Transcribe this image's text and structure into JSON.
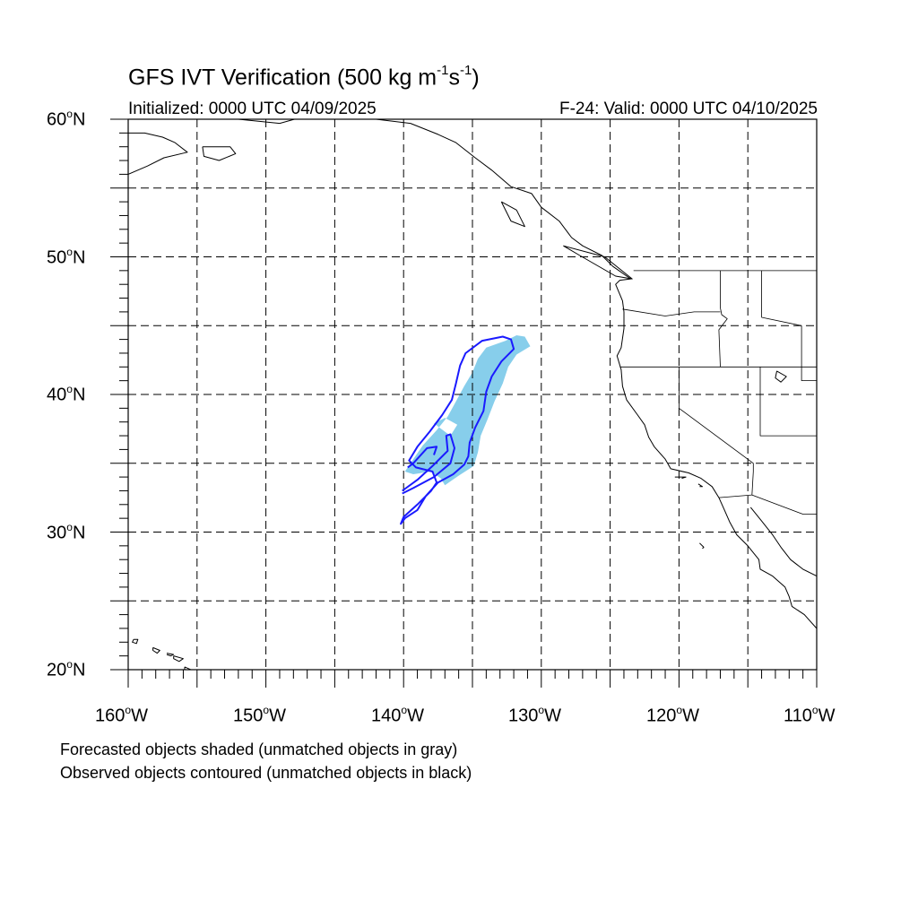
{
  "title": {
    "main": "GFS IVT Verification (500 kg m",
    "exp1": "-1",
    "mid": "s",
    "exp2": "-1",
    "end": ")"
  },
  "init_text": "Initialized: 0000 UTC 04/09/2025",
  "valid_text": "F-24: Valid: 0000 UTC 04/10/2025",
  "lat_labels": [
    {
      "num": "60",
      "deg": "o",
      "hem": "N"
    },
    {
      "num": "50",
      "deg": "o",
      "hem": "N"
    },
    {
      "num": "40",
      "deg": "o",
      "hem": "N"
    },
    {
      "num": "30",
      "deg": "o",
      "hem": "N"
    },
    {
      "num": "20",
      "deg": "o",
      "hem": "N"
    }
  ],
  "lon_labels": [
    {
      "num": "160",
      "deg": "o",
      "hem": "W"
    },
    {
      "num": "150",
      "deg": "o",
      "hem": "W"
    },
    {
      "num": "140",
      "deg": "o",
      "hem": "W"
    },
    {
      "num": "130",
      "deg": "o",
      "hem": "W"
    },
    {
      "num": "120",
      "deg": "o",
      "hem": "W"
    },
    {
      "num": "110",
      "deg": "o",
      "hem": "W"
    }
  ],
  "notes": [
    "Forecasted objects shaded (unmatched objects in gray)",
    "Observed objects contoured (unmatched objects in black)"
  ],
  "map": {
    "lon_range": [
      -160,
      -110
    ],
    "lat_range": [
      20,
      60
    ],
    "grid_lons": [
      -155,
      -150,
      -145,
      -140,
      -135,
      -130,
      -125,
      -120,
      -115
    ],
    "grid_lats": [
      25,
      30,
      35,
      40,
      45,
      50,
      55
    ],
    "colors": {
      "forecast_fill": "#87ceeb",
      "observed_contour": "#1a1aff",
      "coast": "#000000",
      "grid": "#000000"
    },
    "forecast_object": [
      [
        -131.2,
        44.2
      ],
      [
        -130.8,
        43.5
      ],
      [
        -131.8,
        42.9
      ],
      [
        -132.4,
        42.0
      ],
      [
        -132.8,
        40.8
      ],
      [
        -133.4,
        39.5
      ],
      [
        -133.9,
        38.2
      ],
      [
        -134.4,
        37.0
      ],
      [
        -134.6,
        35.8
      ],
      [
        -134.9,
        34.8
      ],
      [
        -136.0,
        34.1
      ],
      [
        -137.0,
        33.4
      ],
      [
        -137.3,
        33.9
      ],
      [
        -138.0,
        34.4
      ],
      [
        -139.3,
        34.2
      ],
      [
        -139.9,
        34.4
      ],
      [
        -139.3,
        35.3
      ],
      [
        -138.6,
        36.3
      ],
      [
        -137.6,
        37.4
      ],
      [
        -136.8,
        38.4
      ],
      [
        -136.2,
        39.5
      ],
      [
        -135.6,
        40.6
      ],
      [
        -135.0,
        41.6
      ],
      [
        -134.6,
        42.6
      ],
      [
        -134.0,
        43.4
      ],
      [
        -132.6,
        43.9
      ],
      [
        -131.8,
        44.3
      ]
    ],
    "forecast_hole": [
      [
        -136.6,
        37.0
      ],
      [
        -137.8,
        37.9
      ],
      [
        -137.0,
        38.3
      ],
      [
        -136.1,
        37.8
      ]
    ],
    "observed_outer": [
      [
        -132.2,
        44.0
      ],
      [
        -132.0,
        43.3
      ],
      [
        -132.9,
        42.4
      ],
      [
        -133.6,
        41.3
      ],
      [
        -134.0,
        40.2
      ],
      [
        -134.2,
        38.8
      ],
      [
        -134.8,
        37.6
      ],
      [
        -135.2,
        36.5
      ],
      [
        -135.3,
        35.5
      ],
      [
        -135.6,
        34.9
      ],
      [
        -136.4,
        34.2
      ],
      [
        -137.5,
        33.6
      ],
      [
        -138.4,
        32.6
      ],
      [
        -139.0,
        31.6
      ],
      [
        -139.9,
        31.0
      ],
      [
        -140.2,
        30.6
      ],
      [
        -140.0,
        31.1
      ],
      [
        -139.0,
        32.0
      ],
      [
        -138.0,
        33.0
      ],
      [
        -137.6,
        33.6
      ],
      [
        -137.9,
        34.4
      ],
      [
        -139.1,
        34.7
      ],
      [
        -139.6,
        35.2
      ],
      [
        -139.0,
        36.2
      ],
      [
        -138.1,
        37.3
      ],
      [
        -137.2,
        38.5
      ],
      [
        -136.5,
        39.6
      ],
      [
        -136.2,
        40.8
      ],
      [
        -135.9,
        42.1
      ],
      [
        -135.5,
        43.0
      ],
      [
        -134.3,
        43.9
      ],
      [
        -132.8,
        44.2
      ]
    ],
    "observed_inner": [
      [
        -137.8,
        35.6
      ],
      [
        -137.6,
        36.2
      ],
      [
        -138.3,
        36.1
      ],
      [
        -139.3,
        35.0
      ],
      [
        -139.7,
        34.7
      ]
    ],
    "observed_tail": [
      [
        -140.1,
        32.8
      ],
      [
        -139.3,
        33.2
      ],
      [
        -137.8,
        34.0
      ],
      [
        -136.6,
        35.0
      ],
      [
        -136.3,
        36.1
      ],
      [
        -136.6,
        37.1
      ],
      [
        -136.9,
        37.0
      ],
      [
        -136.8,
        35.9
      ],
      [
        -137.9,
        34.8
      ],
      [
        -139.0,
        33.8
      ],
      [
        -140.1,
        33.0
      ]
    ],
    "coastline": [
      [
        -152.0,
        60.0
      ],
      [
        -149.0,
        59.7
      ],
      [
        -146.5,
        60.4
      ],
      [
        -142.0,
        60.0
      ],
      [
        -139.5,
        59.7
      ],
      [
        -137.5,
        58.9
      ],
      [
        -136.2,
        58.3
      ],
      [
        -134.8,
        57.2
      ],
      [
        -133.6,
        56.3
      ],
      [
        -132.2,
        55.1
      ],
      [
        -130.7,
        54.6
      ],
      [
        -130.0,
        53.6
      ],
      [
        -128.7,
        52.6
      ],
      [
        -127.8,
        51.4
      ],
      [
        -127.0,
        50.8
      ],
      [
        -125.6,
        50.1
      ],
      [
        -124.8,
        49.3
      ],
      [
        -123.5,
        48.4
      ],
      [
        -124.3,
        48.3
      ],
      [
        -124.6,
        48.0
      ],
      [
        -124.1,
        46.8
      ],
      [
        -124.0,
        46.0
      ],
      [
        -124.0,
        44.8
      ],
      [
        -124.2,
        43.4
      ],
      [
        -124.5,
        42.8
      ],
      [
        -124.2,
        41.8
      ],
      [
        -124.1,
        40.6
      ],
      [
        -123.8,
        39.6
      ],
      [
        -123.0,
        38.5
      ],
      [
        -122.5,
        37.8
      ],
      [
        -122.2,
        36.9
      ],
      [
        -121.8,
        36.2
      ],
      [
        -121.0,
        35.3
      ],
      [
        -120.6,
        34.6
      ],
      [
        -119.3,
        34.3
      ],
      [
        -118.4,
        33.9
      ],
      [
        -117.6,
        33.3
      ],
      [
        -117.1,
        32.5
      ],
      [
        -116.7,
        31.6
      ],
      [
        -116.3,
        30.7
      ],
      [
        -115.8,
        29.8
      ],
      [
        -115.0,
        29.0
      ],
      [
        -114.2,
        28.0
      ],
      [
        -114.1,
        27.3
      ],
      [
        -113.2,
        26.8
      ],
      [
        -112.3,
        26.0
      ],
      [
        -112.0,
        25.3
      ],
      [
        -111.8,
        24.6
      ],
      [
        -110.9,
        24.0
      ],
      [
        -110.0,
        23.0
      ]
    ],
    "gulf_coast": [
      [
        -114.8,
        31.8
      ],
      [
        -114.0,
        30.8
      ],
      [
        -113.2,
        29.8
      ],
      [
        -112.6,
        28.9
      ],
      [
        -111.9,
        28.0
      ],
      [
        -111.0,
        27.3
      ],
      [
        -110.0,
        26.8
      ]
    ],
    "alaska_coast": [
      [
        -160.0,
        59.0
      ],
      [
        -158.8,
        59.0
      ],
      [
        -157.5,
        58.7
      ],
      [
        -156.6,
        58.3
      ],
      [
        -155.7,
        57.6
      ],
      [
        -157.4,
        57.2
      ],
      [
        -158.6,
        56.6
      ],
      [
        -160.0,
        56.0
      ]
    ],
    "kodiak": [
      [
        -154.6,
        58.0
      ],
      [
        -152.6,
        58.0
      ],
      [
        -152.2,
        57.5
      ],
      [
        -153.4,
        57.0
      ],
      [
        -154.5,
        57.3
      ],
      [
        -154.6,
        58.0
      ]
    ],
    "hawaii": [
      [
        [
          -159.6,
          22.2
        ],
        [
          -159.3,
          22.2
        ],
        [
          -159.4,
          21.9
        ],
        [
          -159.7,
          22.0
        ],
        [
          -159.6,
          22.2
        ]
      ],
      [
        [
          -158.2,
          21.6
        ],
        [
          -157.7,
          21.4
        ],
        [
          -157.9,
          21.2
        ],
        [
          -158.2,
          21.4
        ],
        [
          -158.2,
          21.6
        ]
      ],
      [
        [
          -157.2,
          21.2
        ],
        [
          -156.7,
          21.1
        ],
        [
          -156.9,
          21.0
        ],
        [
          -157.2,
          21.1
        ]
      ],
      [
        [
          -156.7,
          21.0
        ],
        [
          -156.0,
          20.8
        ],
        [
          -156.3,
          20.6
        ],
        [
          -156.7,
          20.8
        ],
        [
          -156.7,
          21.0
        ]
      ],
      [
        [
          -155.9,
          20.2
        ],
        [
          -155.0,
          19.8
        ],
        [
          -155.5,
          19.4
        ],
        [
          -155.9,
          19.8
        ],
        [
          -155.9,
          20.2
        ]
      ]
    ],
    "borders": [
      [
        [
          -123.3,
          49.0
        ],
        [
          -110.0,
          49.0
        ]
      ],
      [
        [
          -117.0,
          49.0
        ],
        [
          -117.0,
          46.3
        ],
        [
          -116.9,
          45.8
        ],
        [
          -116.5,
          45.5
        ],
        [
          -117.1,
          44.7
        ],
        [
          -117.0,
          42.0
        ]
      ],
      [
        [
          -124.3,
          42.0
        ],
        [
          -110.0,
          42.0
        ]
      ],
      [
        [
          -124.1,
          46.2
        ],
        [
          -121.0,
          45.7
        ],
        [
          -118.9,
          46.0
        ],
        [
          -117.0,
          46.0
        ]
      ],
      [
        [
          -120.0,
          42.0
        ],
        [
          -120.0,
          39.0
        ],
        [
          -114.6,
          35.0
        ],
        [
          -114.6,
          34.4
        ],
        [
          -114.7,
          32.7
        ],
        [
          -117.1,
          32.5
        ]
      ],
      [
        [
          -114.1,
          42.0
        ],
        [
          -114.1,
          37.0
        ],
        [
          -110.0,
          37.0
        ]
      ],
      [
        [
          -111.1,
          45.0
        ],
        [
          -111.1,
          41.0
        ],
        [
          -110.0,
          41.0
        ]
      ],
      [
        [
          -114.0,
          49.0
        ],
        [
          -114.0,
          45.6
        ],
        [
          -111.1,
          45.0
        ]
      ],
      [
        [
          -114.7,
          32.7
        ],
        [
          -111.0,
          31.3
        ],
        [
          -110.0,
          31.3
        ]
      ]
    ],
    "islands": [
      [
        [
          -132.9,
          54.0
        ],
        [
          -131.8,
          53.4
        ],
        [
          -131.2,
          52.2
        ],
        [
          -132.2,
          52.6
        ],
        [
          -132.9,
          54.0
        ]
      ],
      [
        [
          -128.4,
          50.8
        ],
        [
          -125.4,
          50.0
        ],
        [
          -123.4,
          48.4
        ],
        [
          -124.6,
          48.6
        ],
        [
          -127.2,
          50.1
        ],
        [
          -128.4,
          50.8
        ]
      ],
      [
        [
          -118.6,
          33.5
        ],
        [
          -118.3,
          33.3
        ],
        [
          -118.5,
          33.3
        ]
      ],
      [
        [
          -120.3,
          34.0
        ],
        [
          -119.5,
          34.0
        ],
        [
          -119.8,
          33.9
        ]
      ],
      [
        [
          -118.5,
          29.2
        ],
        [
          -118.2,
          28.9
        ],
        [
          -118.3,
          28.8
        ]
      ]
    ],
    "lakes": [
      [
        [
          -112.9,
          41.7
        ],
        [
          -112.2,
          41.3
        ],
        [
          -112.6,
          40.9
        ],
        [
          -113.0,
          41.2
        ],
        [
          -112.9,
          41.7
        ]
      ]
    ]
  }
}
